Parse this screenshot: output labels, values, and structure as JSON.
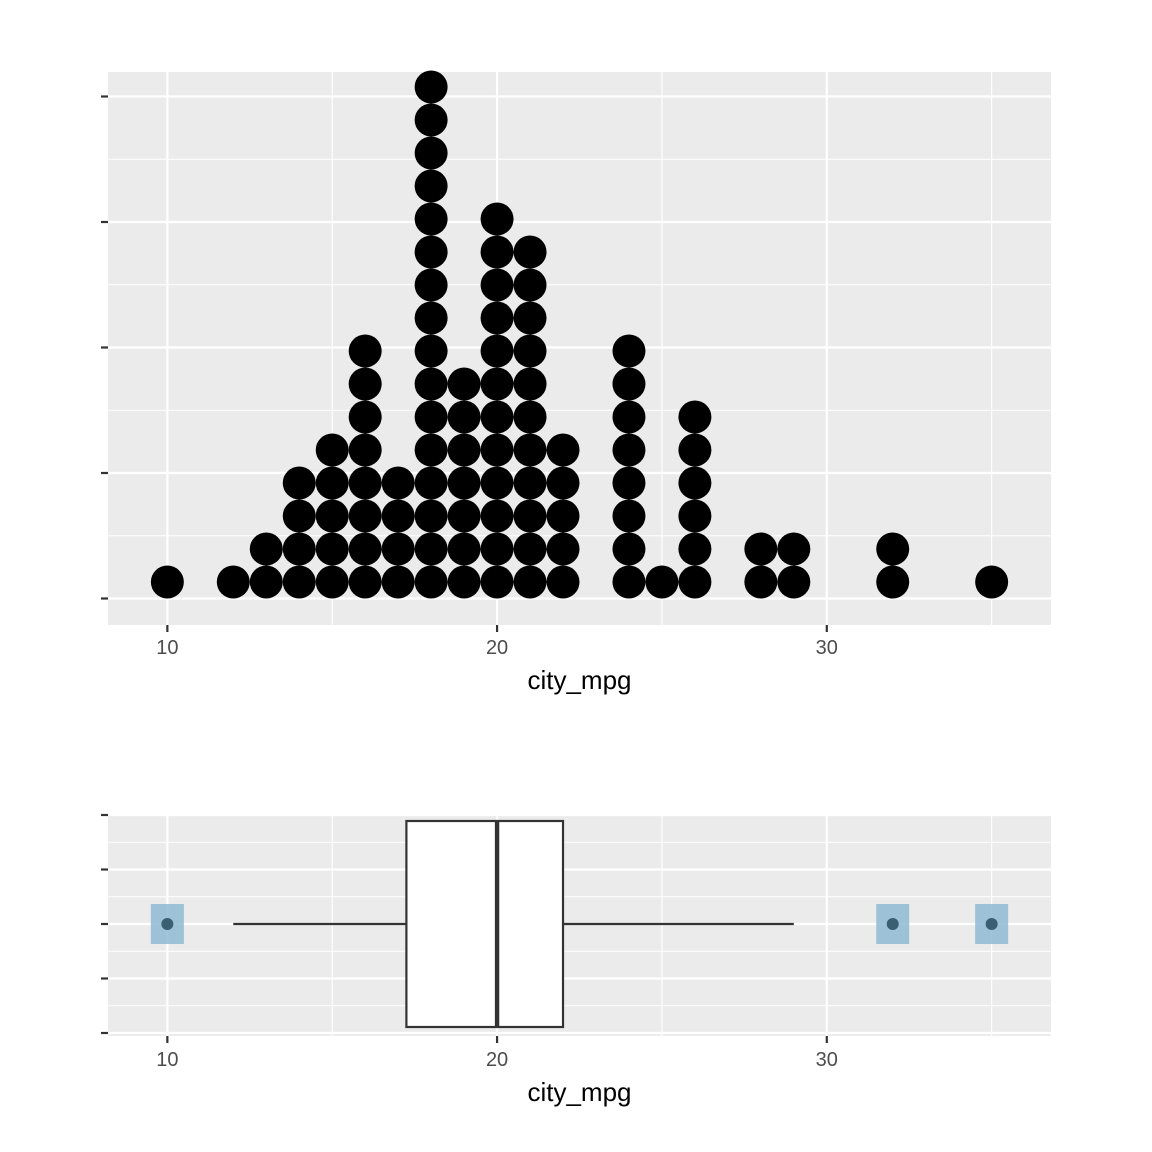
{
  "chart_data": [
    {
      "type": "dotplot",
      "xlabel": "city_mpg",
      "ylabel": "",
      "xlim": [
        8.2,
        36.8
      ],
      "x_ticks": [
        "10",
        "20",
        "30"
      ],
      "y_tick_count": 5,
      "grid": true,
      "panel_color": "#ebebeb",
      "dot_color": "#000000",
      "stacks": [
        {
          "x": 10,
          "count": 1
        },
        {
          "x": 12,
          "count": 1
        },
        {
          "x": 13,
          "count": 2
        },
        {
          "x": 14,
          "count": 4
        },
        {
          "x": 15,
          "count": 5
        },
        {
          "x": 16,
          "count": 8
        },
        {
          "x": 17,
          "count": 4
        },
        {
          "x": 18,
          "count": 16
        },
        {
          "x": 19,
          "count": 7
        },
        {
          "x": 20,
          "count": 12
        },
        {
          "x": 21,
          "count": 11
        },
        {
          "x": 22,
          "count": 5
        },
        {
          "x": 24,
          "count": 8
        },
        {
          "x": 25,
          "count": 1
        },
        {
          "x": 26,
          "count": 6
        },
        {
          "x": 28,
          "count": 2
        },
        {
          "x": 29,
          "count": 2
        },
        {
          "x": 32,
          "count": 2
        },
        {
          "x": 35,
          "count": 1
        }
      ]
    },
    {
      "type": "boxplot",
      "xlabel": "city_mpg",
      "ylabel": "",
      "xlim": [
        8.2,
        36.8
      ],
      "x_ticks": [
        "10",
        "20",
        "30"
      ],
      "y_tick_count": 5,
      "grid": true,
      "panel_color": "#ebebeb",
      "box": {
        "whisker_low": 12,
        "q1": 17.25,
        "median": 20,
        "q3": 22,
        "whisker_high": 29
      },
      "outliers": [
        10,
        32,
        35
      ],
      "outlier_highlight_color": "#8fbbd3",
      "outlier_point_color": "#3a5f73"
    }
  ]
}
